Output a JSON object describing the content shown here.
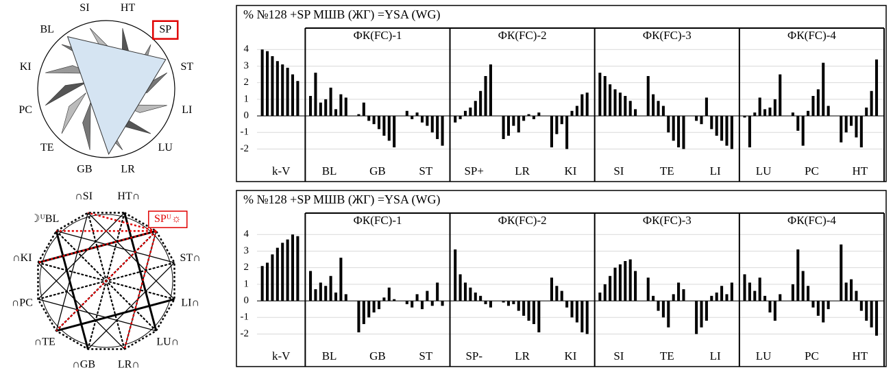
{
  "chart_data": [
    {
      "type": "bar",
      "title": "% №128 +SP МШВ (ЖГ) =YSA (WG)",
      "panels": [
        "ФК(FC)-1",
        "ФК(FC)-2",
        "ФК(FC)-3",
        "ФК(FC)-4"
      ],
      "categories": [
        "k-V",
        "BL",
        "GB",
        "ST",
        "SP+",
        "LR",
        "KI",
        "SI",
        "TE",
        "LI",
        "LU",
        "PC",
        "HT"
      ],
      "values": [
        [
          4,
          3.9,
          3.6,
          3.3,
          3.1,
          2.9,
          2.5,
          2.1
        ],
        [
          1.2,
          2.6,
          0.8,
          1.0,
          1.7,
          0.4,
          1.3,
          1.1
        ],
        [
          0.1,
          0.8,
          -0.3,
          -0.5,
          -0.8,
          -1.2,
          -1.5,
          -1.9
        ],
        [
          0.3,
          -0.2,
          0.2,
          -0.4,
          -0.6,
          -1.0,
          -1.4,
          -1.8
        ],
        [
          -0.4,
          -0.2,
          0.3,
          0.5,
          0.9,
          1.5,
          2.4,
          3.1
        ],
        [
          -1.4,
          -1.2,
          -0.6,
          -1.0,
          -0.3,
          0.1,
          -0.2,
          0.2
        ],
        [
          -1.9,
          -1.1,
          -0.5,
          -2.0,
          0.3,
          0.6,
          1.3,
          1.4
        ],
        [
          2.6,
          2.4,
          1.9,
          1.6,
          1.4,
          1.2,
          0.9,
          0.4
        ],
        [
          2.4,
          1.3,
          0.9,
          0.6,
          -1.0,
          -1.5,
          -1.9,
          -2.0
        ],
        [
          -0.3,
          -0.5,
          1.1,
          -0.8,
          -1.2,
          -1.5,
          -1.8,
          -2.0
        ],
        [
          -0.1,
          -1.9,
          0.2,
          1.1,
          0.4,
          0.5,
          1.0,
          2.5
        ],
        [
          0.2,
          -0.9,
          -1.8,
          0.3,
          1.2,
          1.6,
          3.2,
          0.6
        ],
        [
          -1.6,
          -1.0,
          -0.6,
          -1.3,
          -1.9,
          0.5,
          1.5,
          3.4
        ]
      ],
      "color": "#000000",
      "ylim": [
        -2.6,
        4.3
      ],
      "yticks": [
        -2,
        -1,
        0,
        1,
        2,
        3,
        4
      ],
      "grid": true
    },
    {
      "type": "bar",
      "title": "% №128 +SP МШВ (ЖГ) =YSA (WG)",
      "panels": [
        "ФК(FC)-1",
        "ФК(FC)-2",
        "ФК(FC)-3",
        "ФК(FC)-4"
      ],
      "categories": [
        "k-V",
        "BL",
        "GB",
        "ST",
        "SP-",
        "LR",
        "KI",
        "SI",
        "TE",
        "LI",
        "LU",
        "PC",
        "HT"
      ],
      "values": [
        [
          2.1,
          2.3,
          2.8,
          3.2,
          3.5,
          3.7,
          4.0,
          3.9
        ],
        [
          1.8,
          0.7,
          1.1,
          0.9,
          1.5,
          0.5,
          2.6,
          0.4
        ],
        [
          -1.9,
          -1.4,
          -1.0,
          -0.7,
          -0.5,
          0.2,
          0.8,
          0.1
        ],
        [
          -0.2,
          -0.4,
          0.4,
          -0.5,
          0.6,
          -0.3,
          1.1,
          -0.3
        ],
        [
          3.1,
          1.6,
          1.1,
          0.8,
          0.5,
          0.3,
          -0.2,
          -0.4
        ],
        [
          -0.1,
          -0.3,
          -0.2,
          -0.6,
          -0.9,
          -1.2,
          -1.4,
          -1.9
        ],
        [
          1.4,
          0.9,
          0.6,
          -0.4,
          -1.0,
          -1.3,
          -1.9,
          -2.0
        ],
        [
          0.5,
          1.0,
          1.5,
          2.0,
          2.2,
          2.4,
          2.5,
          1.8
        ],
        [
          1.4,
          0.3,
          -0.6,
          -1.0,
          -1.6,
          0.4,
          1.1,
          0.7
        ],
        [
          -2.0,
          -1.6,
          -1.2,
          0.3,
          0.5,
          0.9,
          0.4,
          1.1
        ],
        [
          1.6,
          1.1,
          0.6,
          1.4,
          0.3,
          -0.7,
          -1.2,
          0.4
        ],
        [
          1.0,
          3.1,
          1.8,
          0.9,
          -0.4,
          -0.9,
          -1.3,
          -0.5
        ],
        [
          3.4,
          1.1,
          1.3,
          0.6,
          -0.6,
          -1.2,
          -1.6,
          -2.1
        ]
      ],
      "color": "#000000",
      "ylim": [
        -2.6,
        4.3
      ],
      "yticks": [
        -2,
        -1,
        0,
        1,
        2,
        3,
        4
      ],
      "grid": true
    }
  ],
  "diagrams": {
    "wheel": {
      "labels": [
        "HT",
        "SP",
        "ST",
        "LI",
        "LU",
        "LR",
        "GB",
        "TE",
        "PC",
        "KI",
        "BL",
        "SI"
      ],
      "highlight_index": 1,
      "highlight_color": "#e00000",
      "triangle_color": "#d5e4f2"
    },
    "polygon": {
      "labels": [
        "HT∩",
        "SPᵁ☼",
        "ST∩",
        "LI∩",
        "LU∩",
        "LR∩",
        "∩GB",
        "∩TE",
        "∩PC",
        "∩KI",
        "☽ᵁBL",
        "∩SI"
      ],
      "highlight_index": 1,
      "highlight_color": "#e00000"
    }
  }
}
